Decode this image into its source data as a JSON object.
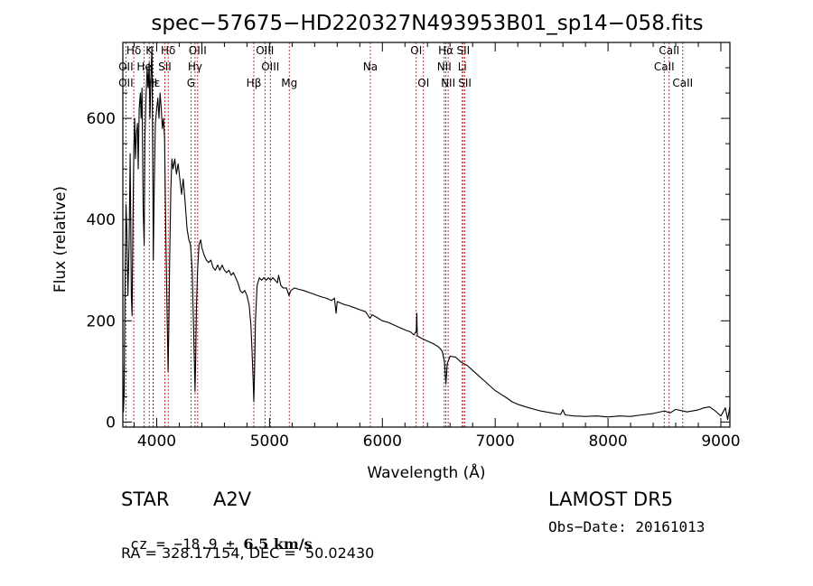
{
  "chart_data": {
    "type": "line",
    "title": "spec−57675−HD220327N493953B01_sp14−058.fits",
    "xlabel": "Wavelength (Å)",
    "ylabel": "Flux (relative)",
    "xlim": [
      3700,
      9080
    ],
    "ylim": [
      -10,
      750
    ],
    "xticks": [
      4000,
      5000,
      6000,
      7000,
      8000,
      9000
    ],
    "yticks": [
      0,
      200,
      400,
      600
    ],
    "grid": false,
    "line_color": "#000000",
    "marker_color": "#b22222",
    "series": [
      {
        "values": [
          [
            3700,
            115
          ],
          [
            3705,
            20
          ],
          [
            3712,
            60
          ],
          [
            3720,
            290
          ],
          [
            3728,
            430
          ],
          [
            3735,
            380
          ],
          [
            3745,
            250
          ],
          [
            3755,
            350
          ],
          [
            3765,
            530
          ],
          [
            3775,
            250
          ],
          [
            3782,
            210
          ],
          [
            3790,
            400
          ],
          [
            3798,
            540
          ],
          [
            3805,
            600
          ],
          [
            3812,
            520
          ],
          [
            3820,
            570
          ],
          [
            3830,
            590
          ],
          [
            3836,
            500
          ],
          [
            3845,
            620
          ],
          [
            3855,
            650
          ],
          [
            3862,
            600
          ],
          [
            3870,
            660
          ],
          [
            3880,
            420
          ],
          [
            3889,
            350
          ],
          [
            3895,
            560
          ],
          [
            3905,
            640
          ],
          [
            3915,
            700
          ],
          [
            3925,
            660
          ],
          [
            3933,
            710
          ],
          [
            3940,
            600
          ],
          [
            3950,
            690
          ],
          [
            3958,
            740
          ],
          [
            3965,
            520
          ],
          [
            3970,
            320
          ],
          [
            3978,
            460
          ],
          [
            3988,
            590
          ],
          [
            4000,
            620
          ],
          [
            4010,
            640
          ],
          [
            4020,
            600
          ],
          [
            4030,
            650
          ],
          [
            4040,
            620
          ],
          [
            4050,
            580
          ],
          [
            4060,
            600
          ],
          [
            4070,
            560
          ],
          [
            4080,
            380
          ],
          [
            4095,
            180
          ],
          [
            4101,
            100
          ],
          [
            4108,
            200
          ],
          [
            4115,
            320
          ],
          [
            4125,
            460
          ],
          [
            4135,
            520
          ],
          [
            4145,
            500
          ],
          [
            4160,
            520
          ],
          [
            4175,
            490
          ],
          [
            4190,
            510
          ],
          [
            4205,
            480
          ],
          [
            4220,
            450
          ],
          [
            4235,
            480
          ],
          [
            4250,
            440
          ],
          [
            4260,
            410
          ],
          [
            4270,
            380
          ],
          [
            4285,
            360
          ],
          [
            4300,
            350
          ],
          [
            4315,
            300
          ],
          [
            4325,
            200
          ],
          [
            4335,
            110
          ],
          [
            4340,
            60
          ],
          [
            4345,
            120
          ],
          [
            4352,
            220
          ],
          [
            4362,
            300
          ],
          [
            4375,
            350
          ],
          [
            4390,
            360
          ],
          [
            4400,
            345
          ],
          [
            4420,
            330
          ],
          [
            4440,
            320
          ],
          [
            4460,
            315
          ],
          [
            4480,
            320
          ],
          [
            4500,
            305
          ],
          [
            4520,
            300
          ],
          [
            4540,
            310
          ],
          [
            4560,
            300
          ],
          [
            4580,
            310
          ],
          [
            4600,
            300
          ],
          [
            4620,
            295
          ],
          [
            4640,
            300
          ],
          [
            4660,
            290
          ],
          [
            4680,
            295
          ],
          [
            4700,
            285
          ],
          [
            4720,
            275
          ],
          [
            4740,
            260
          ],
          [
            4760,
            255
          ],
          [
            4780,
            260
          ],
          [
            4800,
            250
          ],
          [
            4820,
            230
          ],
          [
            4835,
            190
          ],
          [
            4845,
            140
          ],
          [
            4855,
            80
          ],
          [
            4861,
            40
          ],
          [
            4867,
            100
          ],
          [
            4875,
            200
          ],
          [
            4890,
            270
          ],
          [
            4910,
            285
          ],
          [
            4930,
            280
          ],
          [
            4950,
            285
          ],
          [
            4970,
            280
          ],
          [
            4990,
            285
          ],
          [
            5010,
            280
          ],
          [
            5030,
            285
          ],
          [
            5050,
            280
          ],
          [
            5070,
            275
          ],
          [
            5080,
            290
          ],
          [
            5100,
            270
          ],
          [
            5120,
            265
          ],
          [
            5150,
            265
          ],
          [
            5172,
            250
          ],
          [
            5190,
            260
          ],
          [
            5220,
            265
          ],
          [
            5260,
            262
          ],
          [
            5300,
            260
          ],
          [
            5350,
            256
          ],
          [
            5400,
            252
          ],
          [
            5450,
            248
          ],
          [
            5500,
            245
          ],
          [
            5550,
            240
          ],
          [
            5575,
            245
          ],
          [
            5590,
            215
          ],
          [
            5600,
            238
          ],
          [
            5650,
            233
          ],
          [
            5700,
            230
          ],
          [
            5750,
            226
          ],
          [
            5800,
            222
          ],
          [
            5850,
            218
          ],
          [
            5890,
            205
          ],
          [
            5910,
            212
          ],
          [
            5950,
            207
          ],
          [
            6000,
            200
          ],
          [
            6050,
            197
          ],
          [
            6100,
            192
          ],
          [
            6150,
            187
          ],
          [
            6200,
            182
          ],
          [
            6250,
            178
          ],
          [
            6280,
            172
          ],
          [
            6300,
            180
          ],
          [
            6305,
            215
          ],
          [
            6310,
            170
          ],
          [
            6350,
            165
          ],
          [
            6400,
            160
          ],
          [
            6450,
            155
          ],
          [
            6500,
            148
          ],
          [
            6530,
            140
          ],
          [
            6550,
            120
          ],
          [
            6563,
            75
          ],
          [
            6575,
            115
          ],
          [
            6600,
            130
          ],
          [
            6650,
            128
          ],
          [
            6700,
            118
          ],
          [
            6750,
            112
          ],
          [
            6800,
            102
          ],
          [
            6850,
            92
          ],
          [
            6900,
            82
          ],
          [
            6950,
            72
          ],
          [
            7000,
            62
          ],
          [
            7050,
            55
          ],
          [
            7100,
            48
          ],
          [
            7150,
            40
          ],
          [
            7200,
            35
          ],
          [
            7300,
            28
          ],
          [
            7400,
            22
          ],
          [
            7500,
            18
          ],
          [
            7580,
            15
          ],
          [
            7600,
            24
          ],
          [
            7620,
            14
          ],
          [
            7700,
            12
          ],
          [
            7800,
            11
          ],
          [
            7900,
            12
          ],
          [
            8000,
            10
          ],
          [
            8100,
            12
          ],
          [
            8200,
            11
          ],
          [
            8300,
            14
          ],
          [
            8400,
            17
          ],
          [
            8500,
            22
          ],
          [
            8550,
            18
          ],
          [
            8600,
            25
          ],
          [
            8700,
            20
          ],
          [
            8800,
            24
          ],
          [
            8850,
            28
          ],
          [
            8900,
            30
          ],
          [
            8950,
            22
          ],
          [
            9000,
            12
          ],
          [
            9040,
            28
          ],
          [
            9060,
            5
          ],
          [
            9080,
            30
          ]
        ]
      }
    ],
    "line_markers": [
      {
        "label": "Hδ",
        "wl": 3797,
        "row": 0
      },
      {
        "label": "K",
        "wl": 3934,
        "row": 0
      },
      {
        "label": "Hδ",
        "wl": 4102,
        "row": 0
      },
      {
        "label": "OIII",
        "wl": 4363,
        "row": 0
      },
      {
        "label": "OIII",
        "wl": 4959,
        "row": 0
      },
      {
        "label": "OI",
        "wl": 6300,
        "row": 0
      },
      {
        "label": "Hα",
        "wl": 6563,
        "row": 0
      },
      {
        "label": "SII",
        "wl": 6717,
        "row": 0
      },
      {
        "label": "CaII",
        "wl": 8542,
        "row": 0
      },
      {
        "label": "OII",
        "wl": 3727,
        "row": 1
      },
      {
        "label": "He",
        "wl": 3889,
        "row": 1
      },
      {
        "label": "SII",
        "wl": 4072,
        "row": 1
      },
      {
        "label": "Hγ",
        "wl": 4340,
        "row": 1
      },
      {
        "label": "OIII",
        "wl": 5007,
        "row": 1
      },
      {
        "label": "Na",
        "wl": 5893,
        "row": 1
      },
      {
        "label": "NII",
        "wl": 6548,
        "row": 1
      },
      {
        "label": "Li",
        "wl": 6708,
        "row": 1
      },
      {
        "label": "CaII",
        "wl": 8498,
        "row": 1
      },
      {
        "label": "OII",
        "wl": 3727,
        "row": 2
      },
      {
        "label": "Hε",
        "wl": 3970,
        "row": 2
      },
      {
        "label": "H",
        "wl": 3968,
        "row": 2
      },
      {
        "label": "G",
        "wl": 4304,
        "row": 2
      },
      {
        "label": "Hβ",
        "wl": 4861,
        "row": 2
      },
      {
        "label": "Mg",
        "wl": 5175,
        "row": 2
      },
      {
        "label": "OI",
        "wl": 6364,
        "row": 2
      },
      {
        "label": "NII",
        "wl": 6583,
        "row": 2
      },
      {
        "label": "SII",
        "wl": 6731,
        "row": 2
      },
      {
        "label": "CaII",
        "wl": 8662,
        "row": 2
      }
    ]
  },
  "info": {
    "object_class": "STAR",
    "subclass": "A2V",
    "survey": "LAMOST DR5",
    "cz_prefix": "cz = −18.9 ± ",
    "cz_bold": "6.5 km/s",
    "obs_date": "Obs−Date: 20161013",
    "radec": "RA = 328.17154, DEC =  50.02430"
  }
}
